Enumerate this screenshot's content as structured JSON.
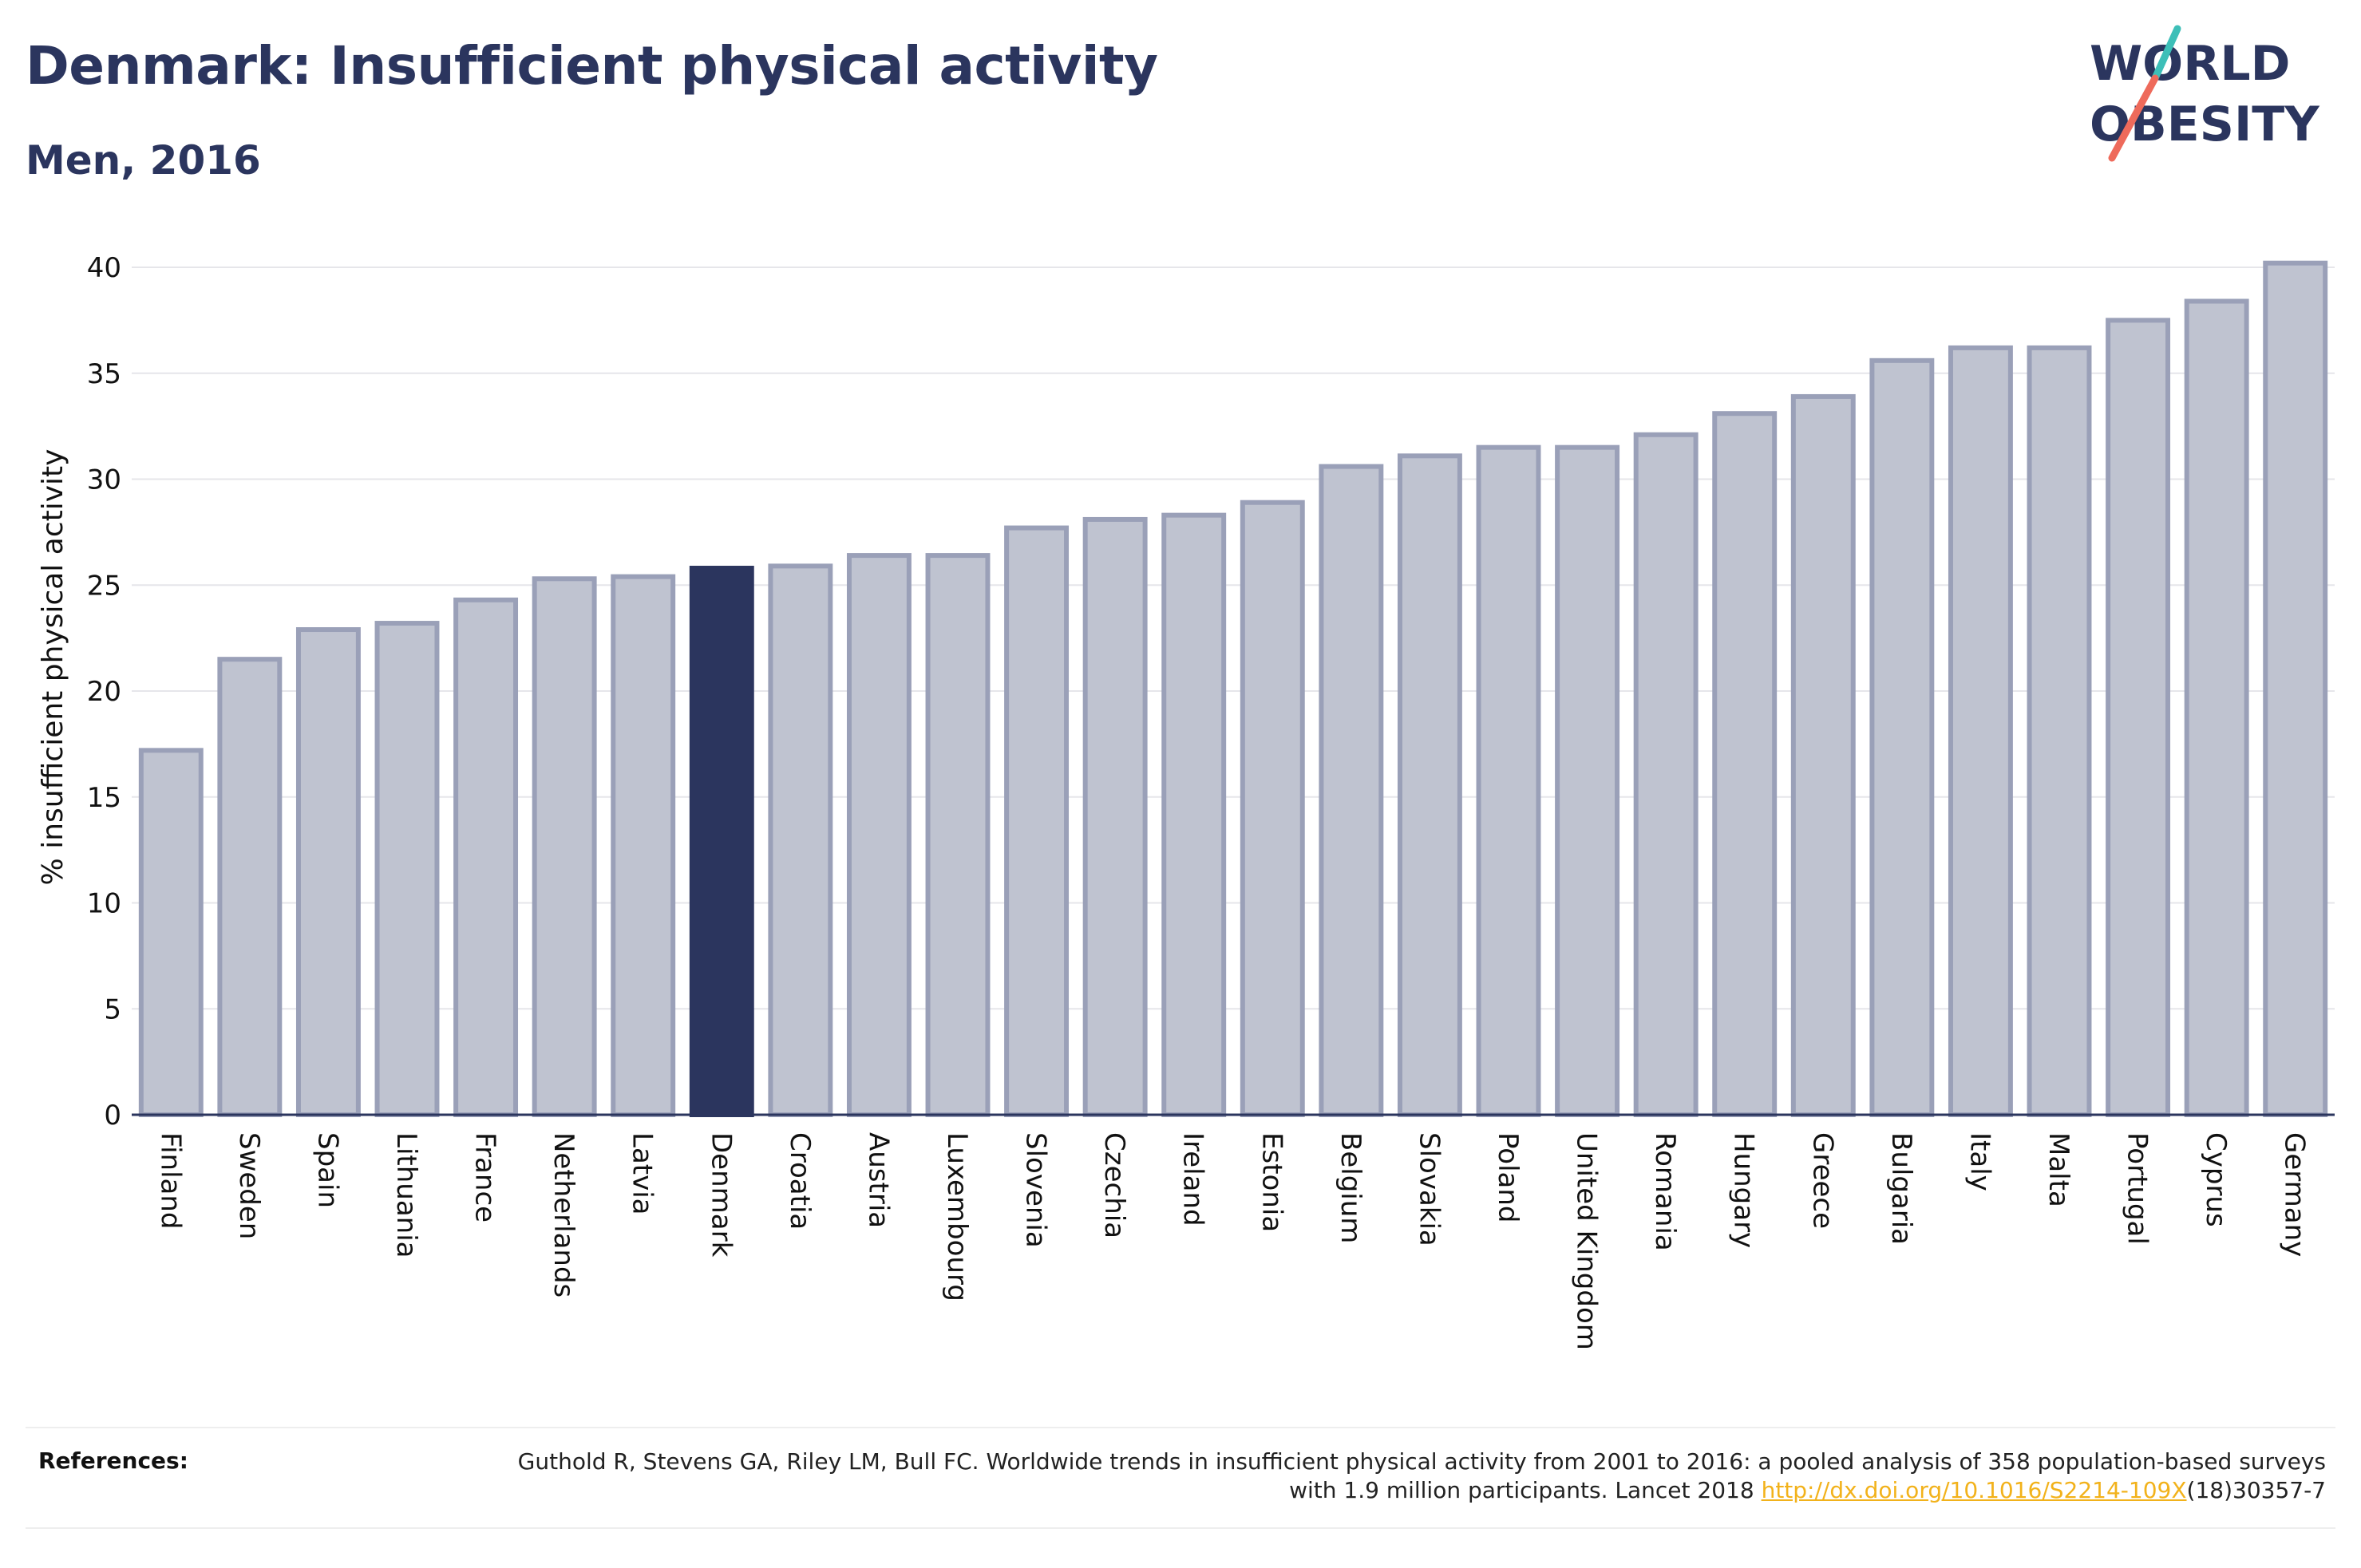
{
  "title": "Denmark: Insufficient physical activity",
  "subtitle": "Men, 2016",
  "logo": {
    "line1": "WORLD",
    "line2": "OBESITY",
    "colors": {
      "text": "#2b355e",
      "slash_top": "#3dbfb8",
      "slash_bottom": "#ee6a5b"
    }
  },
  "colors": {
    "bar": "#bfc3d0",
    "bar_border": "#9aa0b8",
    "highlight": "#2b355e",
    "grid": "#e6e6ea",
    "axis": "#2b355e"
  },
  "chart_data": {
    "type": "bar",
    "ylabel": "% insufficient physical activity",
    "xlabel": "",
    "ylim": [
      0,
      41
    ],
    "yticks": [
      0,
      5,
      10,
      15,
      20,
      25,
      30,
      35,
      40
    ],
    "grid": true,
    "highlight": "Denmark",
    "categories": [
      "Finland",
      "Sweden",
      "Spain",
      "Lithuania",
      "France",
      "Netherlands",
      "Latvia",
      "Denmark",
      "Croatia",
      "Austria",
      "Luxembourg",
      "Slovenia",
      "Czechia",
      "Ireland",
      "Estonia",
      "Belgium",
      "Slovakia",
      "Poland",
      "United Kingdom",
      "Romania",
      "Hungary",
      "Greece",
      "Bulgaria",
      "Italy",
      "Malta",
      "Portugal",
      "Cyprus",
      "Germany"
    ],
    "values": [
      17.2,
      21.5,
      22.9,
      23.2,
      24.3,
      25.3,
      25.4,
      25.8,
      25.9,
      26.4,
      26.4,
      27.7,
      28.1,
      28.3,
      28.9,
      30.6,
      31.1,
      31.5,
      31.5,
      32.1,
      33.1,
      33.9,
      35.6,
      36.2,
      36.2,
      37.5,
      38.4,
      40.2
    ]
  },
  "references": {
    "label": "References:",
    "text": "Guthold R, Stevens GA, Riley LM, Bull FC. Worldwide trends in insufficient physical activity from 2001 to 2016: a pooled analysis of 358 population-based surveys with 1.9 million participants. Lancet 2018 ",
    "link": "http://dx.doi.org/10.1016/S2214-109X",
    "suffix": "(18)30357-7"
  }
}
